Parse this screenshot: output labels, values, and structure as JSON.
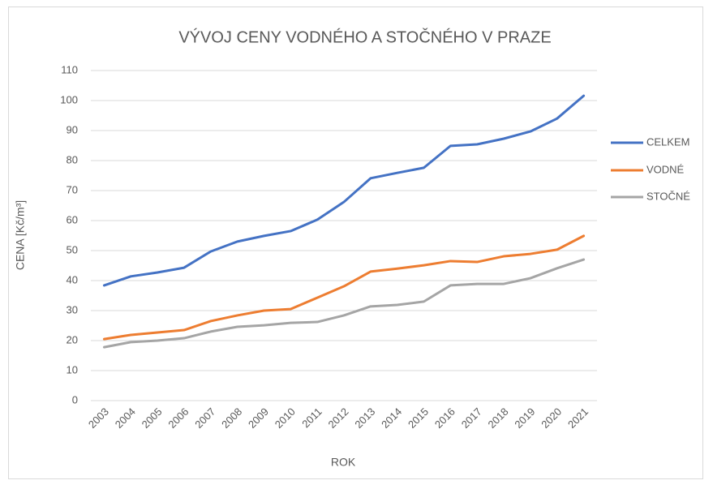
{
  "chart_data": {
    "type": "line",
    "title": "VÝVOJ CENY VODNÉHO A STOČNÉHO V PRAZE",
    "x_label": "ROK",
    "y_label": "CENA [Kč/m³]",
    "categories": [
      "2003",
      "2004",
      "2005",
      "2006",
      "2007",
      "2008",
      "2009",
      "2010",
      "2011",
      "2012",
      "2013",
      "2014",
      "2015",
      "2016",
      "2017",
      "2018",
      "2019",
      "2020",
      "2021"
    ],
    "series": [
      {
        "name": "CELKEM",
        "color": "#4472c4",
        "values": [
          38.4,
          41.4,
          42.7,
          44.3,
          49.7,
          53,
          54.9,
          56.5,
          60.3,
          66.2,
          74.1,
          75.9,
          77.6,
          84.9,
          85.4,
          87.3,
          89.7,
          94,
          101.6
        ]
      },
      {
        "name": "VODNÉ",
        "color": "#ed7d31",
        "values": [
          20.5,
          21.9,
          22.7,
          23.5,
          26.5,
          28.4,
          30,
          30.5,
          34.3,
          38.1,
          43,
          44,
          45.1,
          46.5,
          46.2,
          48.1,
          48.9,
          50.3,
          54.9
        ]
      },
      {
        "name": "STOČNÉ",
        "color": "#a5a5a5",
        "values": [
          17.8,
          19.5,
          20,
          20.8,
          23,
          24.6,
          25.1,
          25.9,
          26.2,
          28.4,
          31.4,
          31.9,
          33,
          38.4,
          38.9,
          38.9,
          40.8,
          44.1,
          47
        ]
      }
    ],
    "ylim": [
      0,
      110
    ],
    "yticks": [
      0,
      10,
      20,
      30,
      40,
      50,
      60,
      70,
      80,
      90,
      100,
      110
    ],
    "grid": true,
    "legend": "right"
  }
}
